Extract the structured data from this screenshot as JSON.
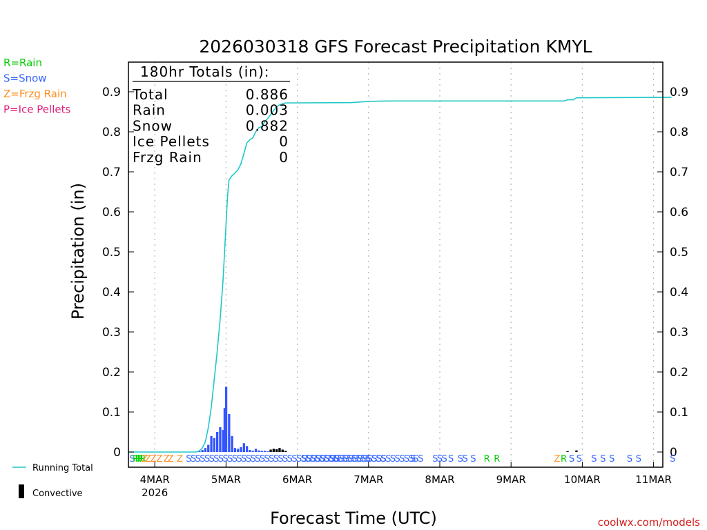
{
  "chart_data": {
    "type": "bar",
    "title": "2026030318 GFS Forecast Precipitation KMYL",
    "ylabel": "Precipitation (in)",
    "xlabel": "Forecast Time (UTC)",
    "ylim": [
      0,
      0.97
    ],
    "xlim_hours": [
      -3,
      180
    ],
    "y_ticks": [
      "0",
      "0.1",
      "0.2",
      "0.3",
      "0.4",
      "0.5",
      "0.6",
      "0.7",
      "0.8",
      "0.9"
    ],
    "y_tick_values": [
      0,
      0.1,
      0.2,
      0.3,
      0.4,
      0.5,
      0.6,
      0.7,
      0.8,
      0.9
    ],
    "x_ticks": [
      {
        "hour": 6,
        "label": "4MAR",
        "sublabel": "2026"
      },
      {
        "hour": 30,
        "label": "5MAR",
        "sublabel": ""
      },
      {
        "hour": 54,
        "label": "6MAR",
        "sublabel": ""
      },
      {
        "hour": 78,
        "label": "7MAR",
        "sublabel": ""
      },
      {
        "hour": 102,
        "label": "8MAR",
        "sublabel": ""
      },
      {
        "hour": 126,
        "label": "9MAR",
        "sublabel": ""
      },
      {
        "hour": 150,
        "label": "10MAR",
        "sublabel": ""
      },
      {
        "hour": 174,
        "label": "11MAR",
        "sublabel": ""
      }
    ],
    "legend_types": [
      {
        "label": "R=Rain",
        "color": "#00cc00"
      },
      {
        "label": "S=Snow",
        "color": "#3366ff"
      },
      {
        "label": "Z=Frzg Rain",
        "color": "#ff8c1a"
      },
      {
        "label": "P=Ice Pellets",
        "color": "#e0207a"
      }
    ],
    "legend_series": [
      {
        "label": "Running Total",
        "color": "#20c8c8"
      },
      {
        "label": "Convective",
        "color": "#000000"
      }
    ],
    "totals": {
      "heading": "180hr Totals (in):",
      "rows": [
        {
          "label": "Total",
          "value": "0.886"
        },
        {
          "label": "Rain",
          "value": "0.003"
        },
        {
          "label": "Snow",
          "value": "0.882"
        },
        {
          "label": "Ice Pellets",
          "value": "0"
        },
        {
          "label": "Frzg Rain",
          "value": "0"
        }
      ]
    },
    "series": [
      {
        "name": "Running Total",
        "color": "#20c8c8",
        "points": [
          [
            -3,
            0
          ],
          [
            20,
            0
          ],
          [
            21,
            0.003
          ],
          [
            22,
            0.01
          ],
          [
            23,
            0.025
          ],
          [
            24,
            0.06
          ],
          [
            25,
            0.11
          ],
          [
            26,
            0.18
          ],
          [
            27,
            0.25
          ],
          [
            28,
            0.33
          ],
          [
            29,
            0.43
          ],
          [
            30,
            0.57
          ],
          [
            30.5,
            0.64
          ],
          [
            31,
            0.68
          ],
          [
            32,
            0.69
          ],
          [
            33,
            0.697
          ],
          [
            34,
            0.705
          ],
          [
            35,
            0.72
          ],
          [
            36,
            0.745
          ],
          [
            37,
            0.772
          ],
          [
            38,
            0.78
          ],
          [
            39,
            0.785
          ],
          [
            40,
            0.8
          ],
          [
            41,
            0.81
          ],
          [
            42,
            0.813
          ],
          [
            43,
            0.825
          ],
          [
            44,
            0.833
          ],
          [
            45,
            0.843
          ],
          [
            46,
            0.853
          ],
          [
            47,
            0.862
          ],
          [
            48,
            0.867
          ],
          [
            49,
            0.87
          ],
          [
            50,
            0.872
          ],
          [
            72,
            0.873
          ],
          [
            78,
            0.876
          ],
          [
            84,
            0.877
          ],
          [
            144,
            0.877
          ],
          [
            145,
            0.88
          ],
          [
            147,
            0.88
          ],
          [
            148,
            0.885
          ],
          [
            180,
            0.886
          ]
        ]
      },
      {
        "name": "Snow (hourly)",
        "color": "#3355ff",
        "points": [
          [
            21,
            0.002
          ],
          [
            22,
            0.005
          ],
          [
            23,
            0.01
          ],
          [
            24,
            0.018
          ],
          [
            25,
            0.04
          ],
          [
            26,
            0.035
          ],
          [
            27,
            0.05
          ],
          [
            28,
            0.062
          ],
          [
            29,
            0.055
          ],
          [
            29.5,
            0.11
          ],
          [
            30,
            0.163
          ],
          [
            31,
            0.095
          ],
          [
            32,
            0.04
          ],
          [
            33,
            0.01
          ],
          [
            34,
            0.008
          ],
          [
            35,
            0.012
          ],
          [
            36,
            0.022
          ],
          [
            37,
            0.015
          ],
          [
            38,
            0.005
          ],
          [
            39,
            0.003
          ],
          [
            40,
            0.008
          ],
          [
            41,
            0.004
          ],
          [
            42,
            0.003
          ],
          [
            43,
            0.003
          ],
          [
            44,
            0.002
          ],
          [
            45,
            0.002
          ],
          [
            46,
            0.003
          ],
          [
            47,
            0.003
          ],
          [
            48,
            0.003
          ],
          [
            49,
            0.002
          ],
          [
            50,
            0.002
          ]
        ]
      },
      {
        "name": "Convective",
        "color": "#000000",
        "points": [
          [
            45,
            0.006
          ],
          [
            46,
            0.008
          ],
          [
            47,
            0.007
          ],
          [
            48,
            0.01
          ],
          [
            49,
            0.006
          ],
          [
            50,
            0.003
          ],
          [
            145,
            0.002
          ],
          [
            148,
            0.004
          ]
        ]
      }
    ],
    "precip_type_markers": [
      {
        "hour": -2.5,
        "text": "S",
        "color": "#3366ff"
      },
      {
        "hour": -1.5,
        "text": "R",
        "color": "#00cc00"
      },
      {
        "hour": -0.7,
        "text": "R",
        "color": "#00cc00"
      },
      {
        "hour": 0.1,
        "text": "R",
        "color": "#00cc00"
      },
      {
        "hour": 0.9,
        "text": "R",
        "color": "#00cc00"
      },
      {
        "hour": 1.6,
        "text": "Z",
        "color": "#ff8c1a"
      },
      {
        "hour": 2.7,
        "text": "Z",
        "color": "#ff8c1a"
      },
      {
        "hour": 4.5,
        "text": "Z",
        "color": "#ff8c1a"
      },
      {
        "hour": 6.5,
        "text": "Z",
        "color": "#ff8c1a"
      },
      {
        "hour": 8.9,
        "text": "Z",
        "color": "#ff8c1a"
      },
      {
        "hour": 10.3,
        "text": "Z",
        "color": "#ff8c1a"
      },
      {
        "hour": 13.4,
        "text": "Z",
        "color": "#ff8c1a"
      },
      {
        "hour": 16.5,
        "text": "SSSSSSSSSSSSSSSSSSSSSSSSSSSSSSSSSSSSSSSS",
        "color": "#3366ff"
      },
      {
        "hour": 55.5,
        "text": "SSSSSSSS",
        "color": "#3366ff"
      },
      {
        "hour": 65,
        "text": "SSSSSSSSSSSS",
        "color": "#3366ff"
      },
      {
        "hour": 77.5,
        "text": "SSSSSSSSSSS",
        "color": "#3366ff"
      },
      {
        "hour": 92,
        "text": "S",
        "color": "#3366ff"
      },
      {
        "hour": 94.6,
        "text": "S",
        "color": "#3366ff"
      },
      {
        "hour": 99.5,
        "text": "SSS",
        "color": "#3366ff"
      },
      {
        "hour": 104.8,
        "text": "S",
        "color": "#3366ff"
      },
      {
        "hour": 108,
        "text": "SS",
        "color": "#3366ff"
      },
      {
        "hour": 112.3,
        "text": "S",
        "color": "#3366ff"
      },
      {
        "hour": 116.8,
        "text": "R",
        "color": "#00cc00"
      },
      {
        "hour": 120.2,
        "text": "R",
        "color": "#00cc00"
      },
      {
        "hour": 140.5,
        "text": "Z",
        "color": "#ff8c1a"
      },
      {
        "hour": 142.7,
        "text": "R",
        "color": "#00cc00"
      },
      {
        "hour": 145.5,
        "text": "S",
        "color": "#3366ff"
      },
      {
        "hour": 148,
        "text": "S",
        "color": "#3366ff"
      },
      {
        "hour": 153,
        "text": "S",
        "color": "#3366ff"
      },
      {
        "hour": 156,
        "text": "S",
        "color": "#3366ff"
      },
      {
        "hour": 159,
        "text": "S",
        "color": "#3366ff"
      },
      {
        "hour": 165,
        "text": "S",
        "color": "#3366ff"
      },
      {
        "hour": 168,
        "text": "S",
        "color": "#3366ff"
      },
      {
        "hour": 179.5,
        "text": "S",
        "color": "#3366ff"
      }
    ],
    "credit": "coolwx.com/models"
  }
}
